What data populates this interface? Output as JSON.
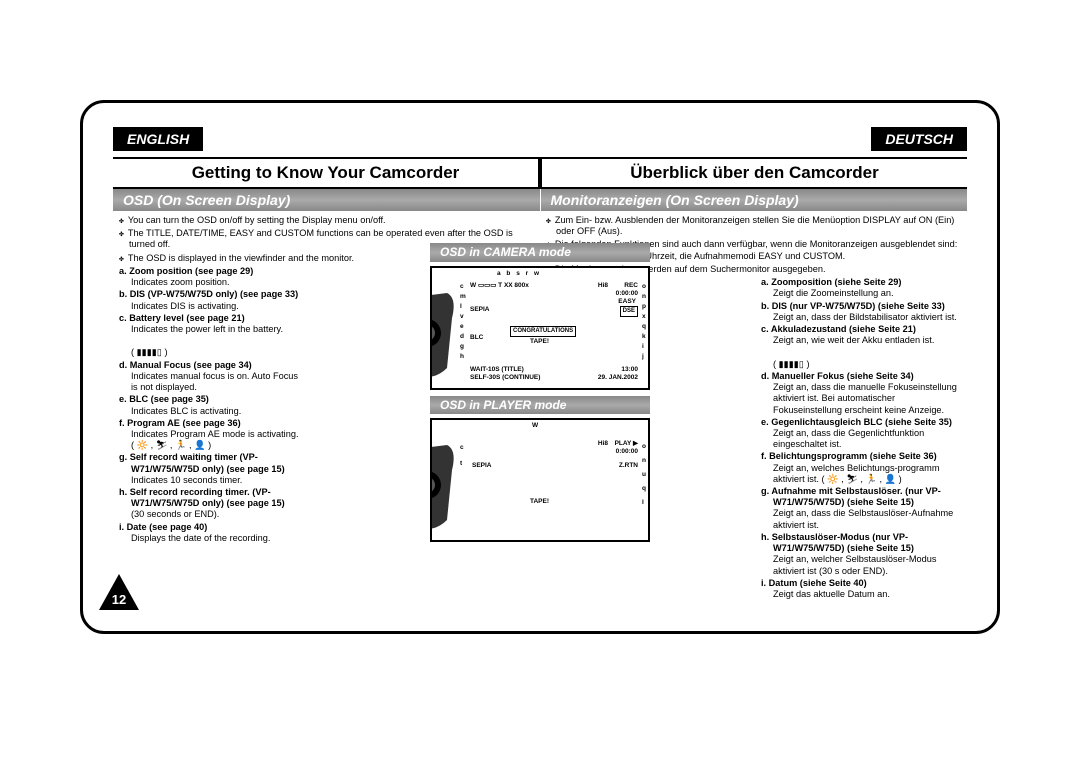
{
  "langs": {
    "left": "ENGLISH",
    "right": "DEUTSCH"
  },
  "titles": {
    "left": "Getting to Know Your Camcorder",
    "right": "Überblick über den Camcorder"
  },
  "subtitles": {
    "left": "OSD (On Screen Display)",
    "right": "Monitoranzeigen (On Screen Display)"
  },
  "intro_en": [
    "You can turn the OSD on/off by setting the Display menu on/off.",
    "The TITLE, DATE/TIME, EASY and CUSTOM functions can be operated even after the OSD is turned off.",
    "The OSD is displayed in the viewfinder and the monitor."
  ],
  "list_en": [
    {
      "k": "a.",
      "t": "Zoom position (see page 29)",
      "d": "Indicates zoom position."
    },
    {
      "k": "b.",
      "t": "DIS (VP-W75/W75D only)    (see page 33)",
      "d": "Indicates DIS is activating."
    },
    {
      "k": "c.",
      "t": "Battery level (see page 21)",
      "d": "Indicates the power left in the battery."
    },
    {
      "k": "",
      "t": "",
      "d": "( ▮▮▮▮▯ )"
    },
    {
      "k": "d.",
      "t": "Manual Focus (see page 34)",
      "d": "Indicates manual focus is on. Auto Focus is not displayed."
    },
    {
      "k": "e.",
      "t": "BLC (see page 35)",
      "d": "Indicates BLC is activating."
    },
    {
      "k": "f.",
      "t": "Program AE (see page 36)",
      "d": "Indicates Program AE mode is activating. ( 🔆 , ⛷ , 🏃 , 👤 )"
    },
    {
      "k": "g.",
      "t": "Self record waiting timer (VP-W71/W75/W75D only) (see page 15)",
      "d": "Indicates 10 seconds timer."
    },
    {
      "k": "h.",
      "t": "Self record recording timer. (VP-W71/W75/W75D only) (see page 15)",
      "d": "(30 seconds or END)."
    },
    {
      "k": "i.",
      "t": "Date (see page 40)",
      "d": "Displays the date of the recording."
    }
  ],
  "intro_de": [
    "Zum Ein- bzw. Ausblenden der Monitoranzeigen stellen Sie die Menüoption DISPLAY auf ON (Ein) oder OFF (Aus).",
    "Die folgenden Funktionen sind auch dann verfügbar, wenn die Monitoranzeigen ausgeblendet sind: Untertitel, Datum und Uhrzeit, die Aufnahmemodi EASY und CUSTOM.",
    "Die Monitoranzeigen werden auf dem Suchermonitor ausgegeben."
  ],
  "list_de": [
    {
      "k": "a.",
      "t": "Zoomposition (siehe Seite 29)",
      "d": "Zeigt die Zoomeinstellung an."
    },
    {
      "k": "b.",
      "t": "DIS (nur VP-W75/W75D) (siehe Seite 33)",
      "d": "Zeigt an, dass der Bildstabilisator aktiviert ist."
    },
    {
      "k": "c.",
      "t": "Akkuladezustand (siehe Seite 21)",
      "d": "Zeigt an, wie weit der Akku entladen ist."
    },
    {
      "k": "",
      "t": "",
      "d": "( ▮▮▮▮▯ )"
    },
    {
      "k": "d.",
      "t": "Manueller Fokus (siehe Seite 34)",
      "d": "Zeigt an, dass die manuelle Fokuseinstellung aktiviert ist. Bei automatischer Fokuseinstellung erscheint keine Anzeige."
    },
    {
      "k": "e.",
      "t": "Gegenlichtausgleich BLC (siehe Seite 35)",
      "d": "Zeigt an, dass die Gegenlichtfunktion eingeschaltet ist."
    },
    {
      "k": "f.",
      "t": "Belichtungsprogramm (siehe Seite 36)",
      "d": "Zeigt an, welches Belichtungs-programm aktiviert ist. ( 🔆 , ⛷ , 🏃 , 👤 )"
    },
    {
      "k": "g.",
      "t": "Aufnahme mit Selbstauslöser. (nur VP-W71/W75/W75D) (siehe Seite 15)",
      "d": "Zeigt an, dass die Selbstauslöser-Aufnahme aktiviert ist."
    },
    {
      "k": "h.",
      "t": "Selbstauslöser-Modus (nur VP-W71/W75/W75D) (siehe Seite 15)",
      "d": "Zeigt an, welcher Selbstauslöser-Modus aktiviert ist (30 s oder END)."
    },
    {
      "k": "i.",
      "t": "Datum (siehe Seite 40)",
      "d": "Zeigt das aktuelle Datum an."
    }
  ],
  "modes": {
    "cam": "OSD in CAMERA mode",
    "play": "OSD in PLAYER mode"
  },
  "osd_cam": {
    "top_letters": "a b     s   r w",
    "rec": "REC",
    "hi": "Hi8",
    "zoom": "W ▭▭▭ T XX 800x",
    "time": "0:00:00",
    "easy": "EASY",
    "dse": "DSE",
    "sepia": "SEPIA",
    "blc": "BLC",
    "congr": "CONGRATULATIONS",
    "tape": "TAPE!",
    "wait": "WAIT-10S (TITLE)",
    "self": "SELF-30S (CONTINUE)",
    "clock": "13:00",
    "date": "29. JAN.2002",
    "side_left": "c m l v e d g h",
    "side_right": "o n p x q k i j"
  },
  "osd_play": {
    "sepia": "SEPIA",
    "hi": "Hi8",
    "play": "PLAY ▶",
    "time": "0:00:00",
    "zrtn": "Z.RTN",
    "tape": "TAPE!",
    "top": "W",
    "side_left": "c t",
    "side_right": "o n u q l"
  },
  "pagenum": "12",
  "colors": {
    "black": "#000000",
    "grey": "#8a8a8a",
    "white": "#ffffff"
  }
}
